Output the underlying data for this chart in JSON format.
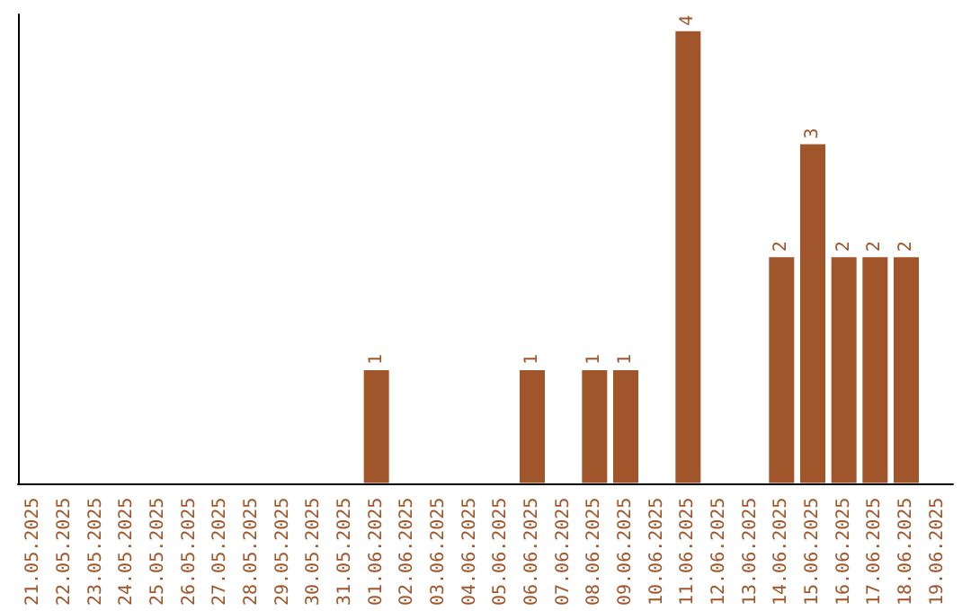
{
  "chart_data": {
    "type": "bar",
    "categories": [
      "21.05.2025",
      "22.05.2025",
      "23.05.2025",
      "24.05.2025",
      "25.05.2025",
      "26.05.2025",
      "27.05.2025",
      "28.05.2025",
      "29.05.2025",
      "30.05.2025",
      "31.05.2025",
      "01.06.2025",
      "02.06.2025",
      "03.06.2025",
      "04.06.2025",
      "05.06.2025",
      "06.06.2025",
      "07.06.2025",
      "08.06.2025",
      "09.06.2025",
      "10.06.2025",
      "11.06.2025",
      "12.06.2025",
      "13.06.2025",
      "14.06.2025",
      "15.06.2025",
      "16.06.2025",
      "17.06.2025",
      "18.06.2025",
      "19.06.2025"
    ],
    "values": [
      0,
      0,
      0,
      0,
      0,
      0,
      0,
      0,
      0,
      0,
      0,
      1,
      0,
      0,
      0,
      0,
      1,
      0,
      1,
      1,
      0,
      4,
      0,
      0,
      2,
      3,
      2,
      2,
      2,
      0
    ],
    "value_labels": [
      null,
      null,
      null,
      null,
      null,
      null,
      null,
      null,
      null,
      null,
      null,
      "1",
      null,
      null,
      null,
      null,
      "1",
      null,
      "1",
      "1",
      null,
      "4",
      null,
      null,
      "2",
      "3",
      "2",
      "2",
      "2",
      null
    ],
    "color": "#a0562a",
    "ylim": [
      0,
      4.15
    ],
    "tick_labels": "x"
  }
}
